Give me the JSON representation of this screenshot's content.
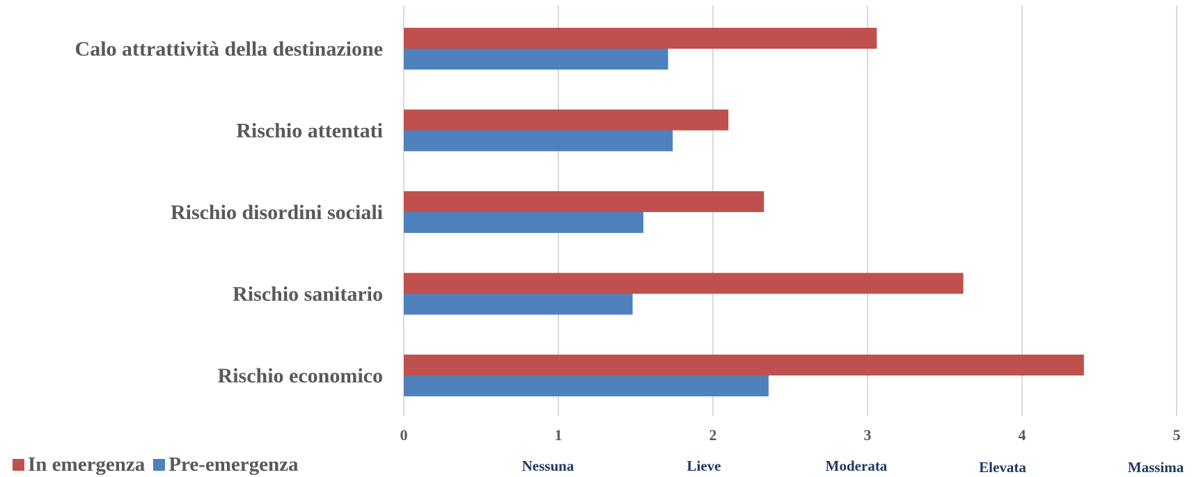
{
  "chart_data": {
    "type": "bar",
    "orientation": "horizontal",
    "categories": [
      "Calo attrattività della destinazione",
      "Rischio attentati",
      "Rischio disordini sociali",
      "Rischio sanitario",
      "Rischio economico "
    ],
    "series": [
      {
        "name": "In emergenza",
        "color": "#c0504d",
        "values": [
          3.06,
          2.1,
          2.33,
          3.62,
          4.4
        ]
      },
      {
        "name": "Pre-emergenza",
        "color": "#4f81bd",
        "values": [
          1.71,
          1.74,
          1.55,
          1.48,
          2.36
        ]
      }
    ],
    "xlim": [
      0,
      5
    ],
    "xticks": [
      "0",
      "1",
      "2",
      "3",
      "4",
      "5"
    ],
    "scale_labels": [
      "Nessuna",
      "Lieve",
      "Moderata",
      "Elevata",
      "Massima"
    ],
    "grid": true,
    "legend_position": "bottom-left"
  }
}
